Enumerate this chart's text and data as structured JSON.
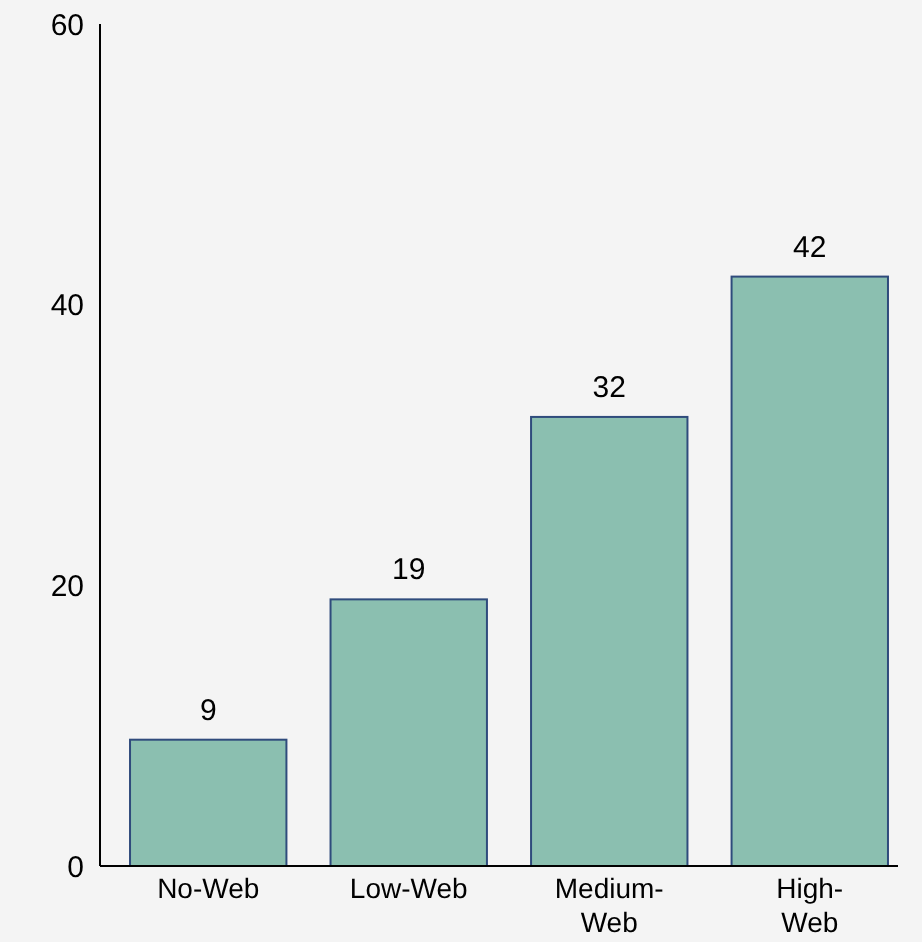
{
  "chart_data": {
    "type": "bar",
    "categories": [
      "No-Web",
      "Low-Web",
      "Medium-Web",
      "High-Web"
    ],
    "values": [
      9,
      19,
      32,
      42
    ],
    "color": "#8bbfb0",
    "ylim": [
      0,
      60
    ],
    "yticks": [
      0,
      20,
      40,
      60
    ],
    "data_labels": true
  }
}
